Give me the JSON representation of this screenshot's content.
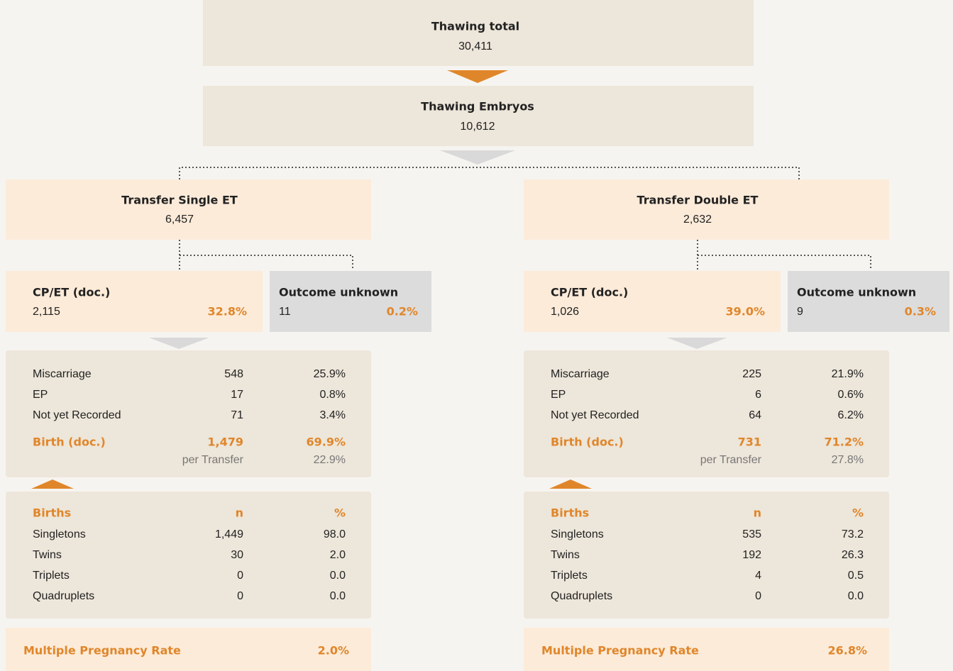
{
  "top": {
    "title": "Thawing total",
    "value": "30,411"
  },
  "embryos": {
    "title": "Thawing Embryos",
    "value": "10,612"
  },
  "branches": [
    {
      "transfer": {
        "title": "Transfer Single ET",
        "value": "6,457"
      },
      "cp": {
        "title": "CP/ET (doc.)",
        "value": "2,115",
        "pct": "32.8%"
      },
      "unknown": {
        "title": "Outcome unknown",
        "value": "11",
        "pct": "0.2%"
      },
      "outcomes": [
        [
          "Miscarriage",
          "548",
          "25.9%"
        ],
        [
          "EP",
          "17",
          "0.8%"
        ],
        [
          "Not yet Recorded",
          "71",
          "3.4%"
        ]
      ],
      "birth": [
        "Birth (doc.)",
        "1,479",
        "69.9%"
      ],
      "per_transfer": [
        "per Transfer",
        "22.9%"
      ],
      "births_header": [
        "Births",
        "n",
        "%"
      ],
      "births": [
        [
          "Singletons",
          "1,449",
          "98.0"
        ],
        [
          "Twins",
          "30",
          "2.0"
        ],
        [
          "Triplets",
          "0",
          "0.0"
        ],
        [
          "Quadruplets",
          "0",
          "0.0"
        ]
      ],
      "mpr": [
        "Multiple Pregnancy Rate",
        "2.0%"
      ]
    },
    {
      "transfer": {
        "title": "Transfer Double ET",
        "value": "2,632"
      },
      "cp": {
        "title": "CP/ET (doc.)",
        "value": "1,026",
        "pct": "39.0%"
      },
      "unknown": {
        "title": "Outcome unknown",
        "value": "9",
        "pct": "0.3%"
      },
      "outcomes": [
        [
          "Miscarriage",
          "225",
          "21.9%"
        ],
        [
          "EP",
          "6",
          "0.6%"
        ],
        [
          "Not yet Recorded",
          "64",
          "6.2%"
        ]
      ],
      "birth": [
        "Birth (doc.)",
        "731",
        "71.2%"
      ],
      "per_transfer": [
        "per Transfer",
        "27.8%"
      ],
      "births_header": [
        "Births",
        "n",
        "%"
      ],
      "births": [
        [
          "Singletons",
          "535",
          "73.2"
        ],
        [
          "Twins",
          "192",
          "26.3"
        ],
        [
          "Triplets",
          "4",
          "0.5"
        ],
        [
          "Quadruplets",
          "0",
          "0.0"
        ]
      ],
      "mpr": [
        "Multiple Pregnancy Rate",
        "26.8%"
      ]
    }
  ]
}
